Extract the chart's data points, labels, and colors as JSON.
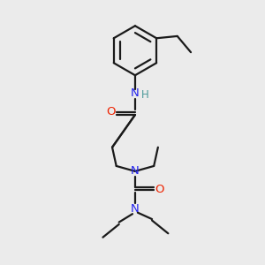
{
  "bg_color": "#ebebeb",
  "bond_color": "#1a1a1a",
  "O_color": "#ee2200",
  "N_color": "#2222ee",
  "H_color": "#4a9999",
  "line_width": 1.6,
  "figsize": [
    3.0,
    3.0
  ],
  "dpi": 100,
  "xlim": [
    0,
    10
  ],
  "ylim": [
    0,
    10
  ]
}
